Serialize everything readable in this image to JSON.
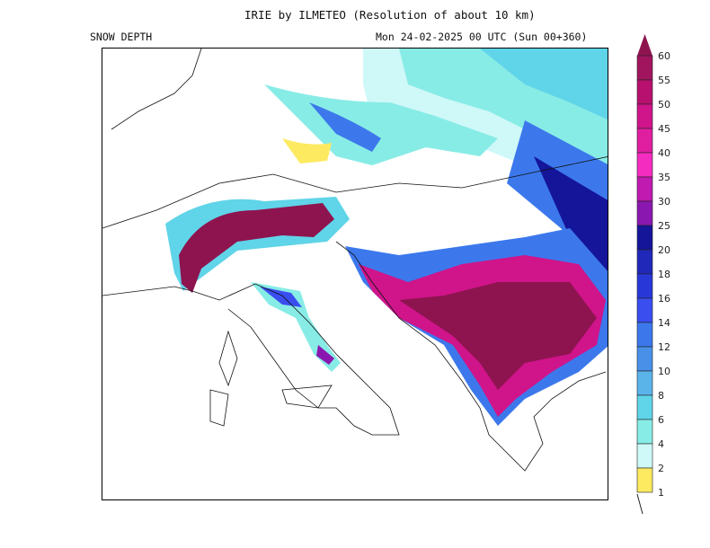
{
  "header": {
    "title": "IRIE by ILMETEO (Resolution of about 10 km)",
    "variable": "SNOW DEPTH",
    "datetime": "Mon 24-02-2025 00 UTC (Sun 00+360)"
  },
  "colorbar": {
    "levels": [
      "60",
      "55",
      "50",
      "45",
      "40",
      "35",
      "30",
      "25",
      "20",
      "18",
      "16",
      "14",
      "12",
      "10",
      "8",
      "6",
      "4",
      "2",
      "1"
    ],
    "colors": [
      "#8e1450",
      "#a0155e",
      "#b8106e",
      "#d0148a",
      "#e01ea0",
      "#f52cc0",
      "#c01ab0",
      "#8a18b0",
      "#15159a",
      "#1f28b8",
      "#2838d8",
      "#3a4ef0",
      "#3c78ec",
      "#4890e8",
      "#5ab4ea",
      "#60d4e8",
      "#88ece6",
      "#cff8f8",
      "#fdea60"
    ]
  }
}
